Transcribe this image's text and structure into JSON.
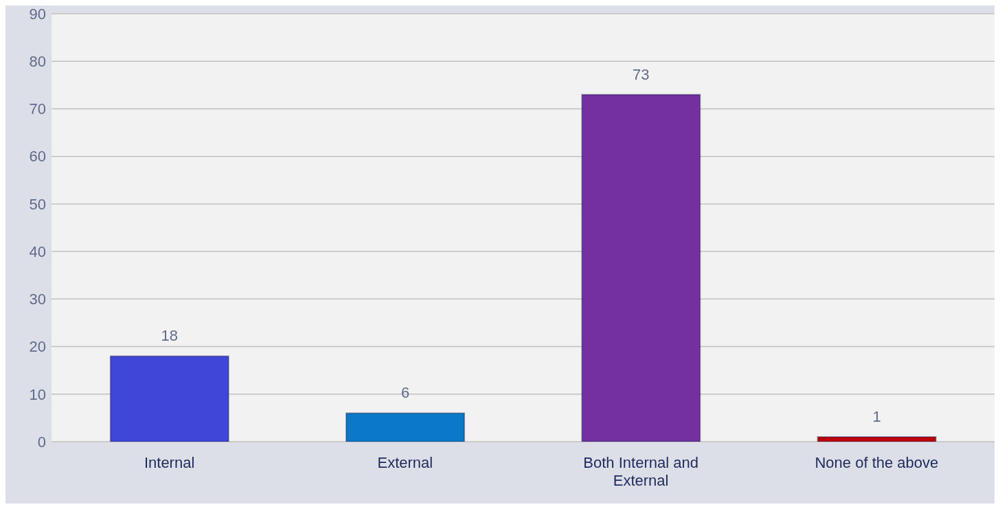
{
  "chart_data": {
    "type": "bar",
    "categories": [
      "Internal",
      "External",
      "Both Internal and External",
      "None of the above"
    ],
    "values": [
      18,
      6,
      73,
      1
    ],
    "colors": [
      "#4046d8",
      "#0b78c8",
      "#7430a0",
      "#c00000"
    ],
    "ylim": [
      0,
      90
    ],
    "yticks": [
      0,
      10,
      20,
      30,
      40,
      50,
      60,
      70,
      80,
      90
    ],
    "grid": "y",
    "data_labels": true
  }
}
